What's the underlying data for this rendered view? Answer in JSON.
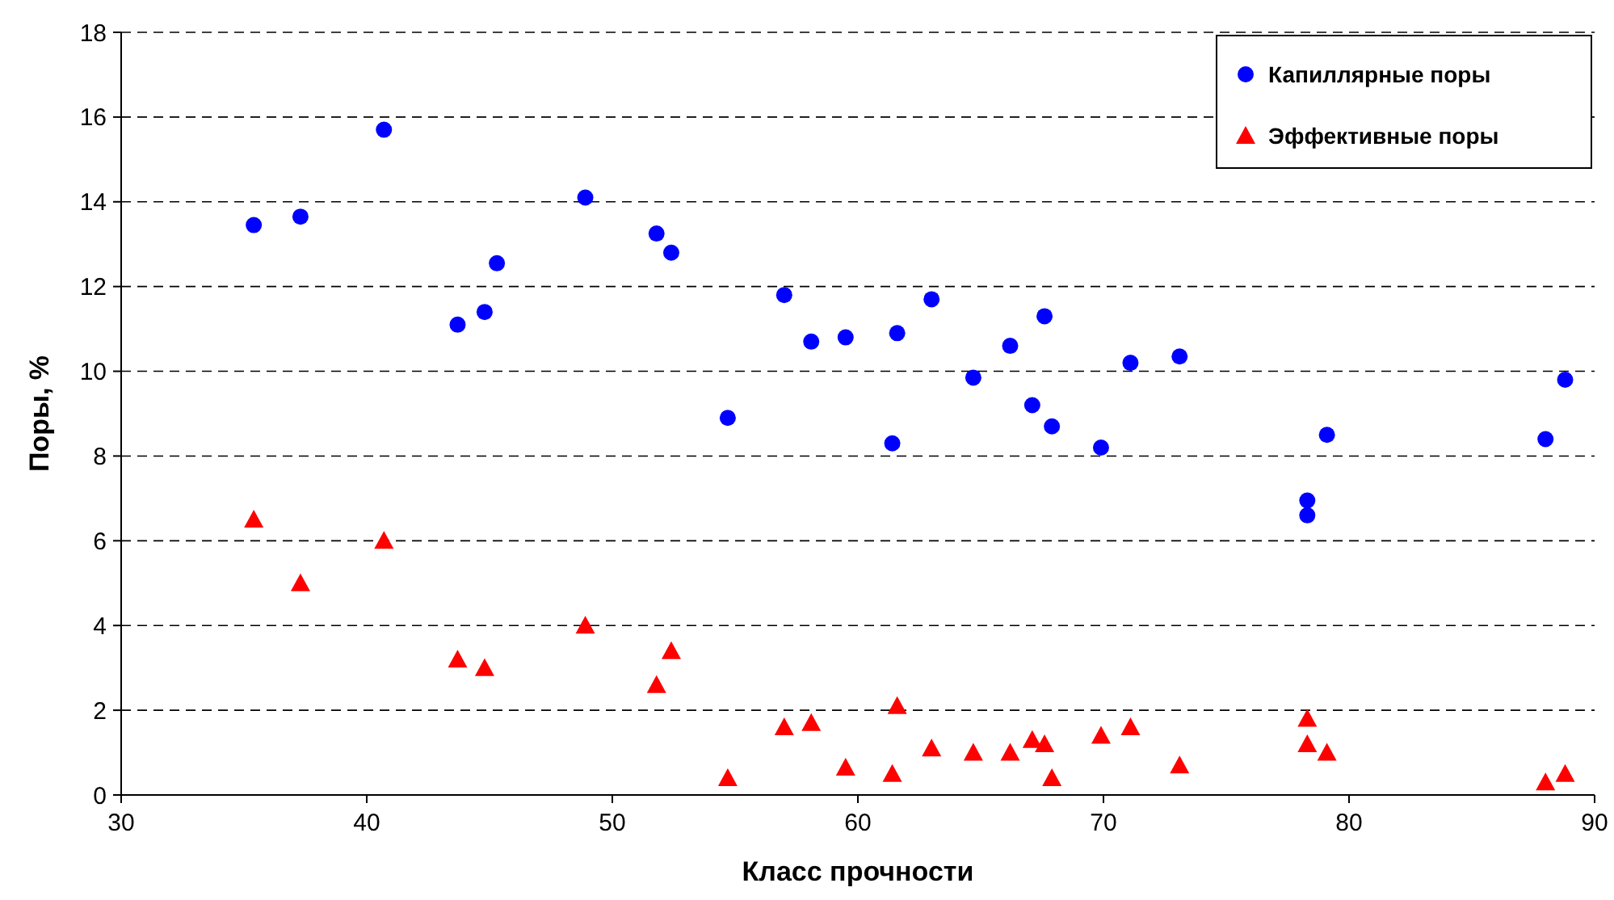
{
  "chart_data": {
    "type": "scatter",
    "xlabel": "Класс прочности",
    "ylabel": "Поры, %",
    "x": [
      35.4,
      37.3,
      40.7,
      43.7,
      44.8,
      45.3,
      48.9,
      51.8,
      52.4,
      54.7,
      57.0,
      58.1,
      59.5,
      61.6,
      61.4,
      63.0,
      64.7,
      66.2,
      67.1,
      67.6,
      67.9,
      69.9,
      71.1,
      73.1,
      78.3,
      78.3,
      79.1,
      88.0,
      88.8
    ],
    "series": [
      {
        "name": "Капиллярные поры",
        "color": "#0000ff",
        "marker": "circle",
        "values": [
          13.45,
          13.65,
          15.7,
          11.1,
          11.4,
          12.55,
          14.1,
          13.25,
          12.8,
          8.9,
          11.8,
          10.7,
          10.8,
          10.9,
          8.3,
          11.7,
          9.85,
          10.6,
          9.2,
          11.3,
          8.7,
          8.2,
          10.2,
          10.35,
          6.95,
          6.6,
          8.5,
          8.4,
          9.8
        ]
      },
      {
        "name": "Эффективные поры",
        "color": "#ff0000",
        "marker": "triangle",
        "values": [
          6.5,
          5.0,
          6.0,
          3.2,
          3.0,
          null,
          4.0,
          2.6,
          3.4,
          0.4,
          1.6,
          1.7,
          0.65,
          2.1,
          0.5,
          1.1,
          1.0,
          1.0,
          1.3,
          1.2,
          0.4,
          1.4,
          1.6,
          0.7,
          1.8,
          1.2,
          1.0,
          0.3,
          0.5
        ]
      }
    ],
    "xlim": [
      30,
      90
    ],
    "xticks": [
      30,
      40,
      50,
      60,
      70,
      80,
      90
    ],
    "ylim": [
      0,
      18
    ],
    "yticks": [
      0,
      2,
      4,
      6,
      8,
      10,
      12,
      14,
      16,
      18
    ],
    "grid": "y",
    "legend": "top right"
  }
}
